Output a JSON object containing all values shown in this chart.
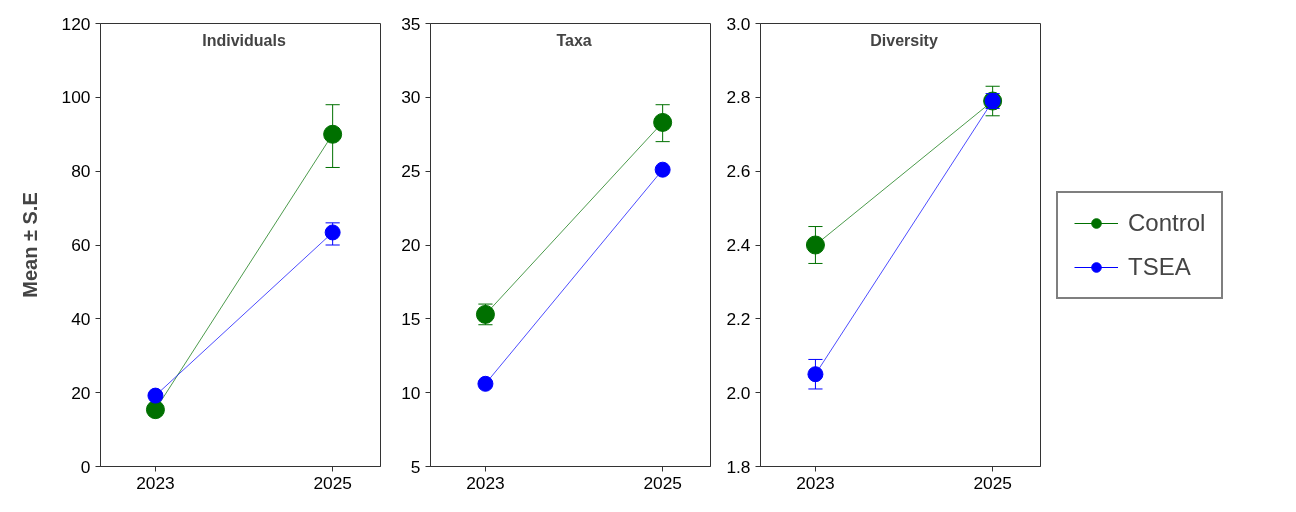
{
  "chart_data": [
    {
      "type": "line",
      "title": "Individuals",
      "ylabel": "Mean ± S.E",
      "categories": [
        "2023",
        "2025"
      ],
      "ylim": [
        0,
        120
      ],
      "yticks": [
        0,
        20,
        40,
        60,
        80,
        100,
        120
      ],
      "marker": "circle",
      "line_style": "solid",
      "grid": false,
      "legend": false,
      "series": [
        {
          "color": "#007000",
          "values": [
            15.4,
            90
          ],
          "errors": [
            null,
            [
              81,
              98
            ]
          ]
        },
        {
          "color": "#0000ff",
          "values": [
            19.2,
            63.4
          ],
          "errors": [
            null,
            [
              60,
              66
            ]
          ]
        }
      ]
    },
    {
      "type": "line",
      "title": "Taxa",
      "categories": [
        "2023",
        "2025"
      ],
      "ylim": [
        5,
        35
      ],
      "yticks": [
        5,
        10,
        15,
        20,
        25,
        30,
        35
      ],
      "marker": "circle",
      "line_style": "solid",
      "grid": false,
      "legend": false,
      "series": [
        {
          "color": "#007000",
          "values": [
            15.3,
            28.3
          ],
          "errors": [
            [
              14.6,
              16
            ],
            [
              27,
              29.5
            ]
          ]
        },
        {
          "color": "#0000ff",
          "values": [
            10.6,
            25.1
          ],
          "errors": [
            null,
            null
          ]
        }
      ]
    },
    {
      "type": "line",
      "title": "Diversity",
      "categories": [
        "2023",
        "2025"
      ],
      "ylim": [
        1.8,
        3.0
      ],
      "yticks": [
        {
          "value": 1.8,
          "label": "1.8"
        },
        {
          "value": 2.0,
          "label": "2.0"
        },
        {
          "value": 2.2,
          "label": "2.2"
        },
        {
          "value": 2.4,
          "label": "2.4"
        },
        {
          "value": 2.6,
          "label": "2.6"
        },
        {
          "value": 2.8,
          "label": "2.8"
        },
        {
          "value": 3.0,
          "label": "3.0"
        }
      ],
      "marker": "circle",
      "line_style": "solid",
      "grid": false,
      "legend": "right",
      "series": [
        {
          "name": "Control",
          "color": "#007000",
          "values": [
            2.4,
            2.79
          ],
          "errors": [
            [
              2.35,
              2.45
            ],
            [
              2.75,
              2.83
            ]
          ]
        },
        {
          "name": "TSEA",
          "color": "#0000ff",
          "values": [
            2.05,
            2.79
          ],
          "errors": [
            [
              2.01,
              2.09
            ],
            [
              2.77,
              2.81
            ]
          ]
        }
      ]
    }
  ]
}
